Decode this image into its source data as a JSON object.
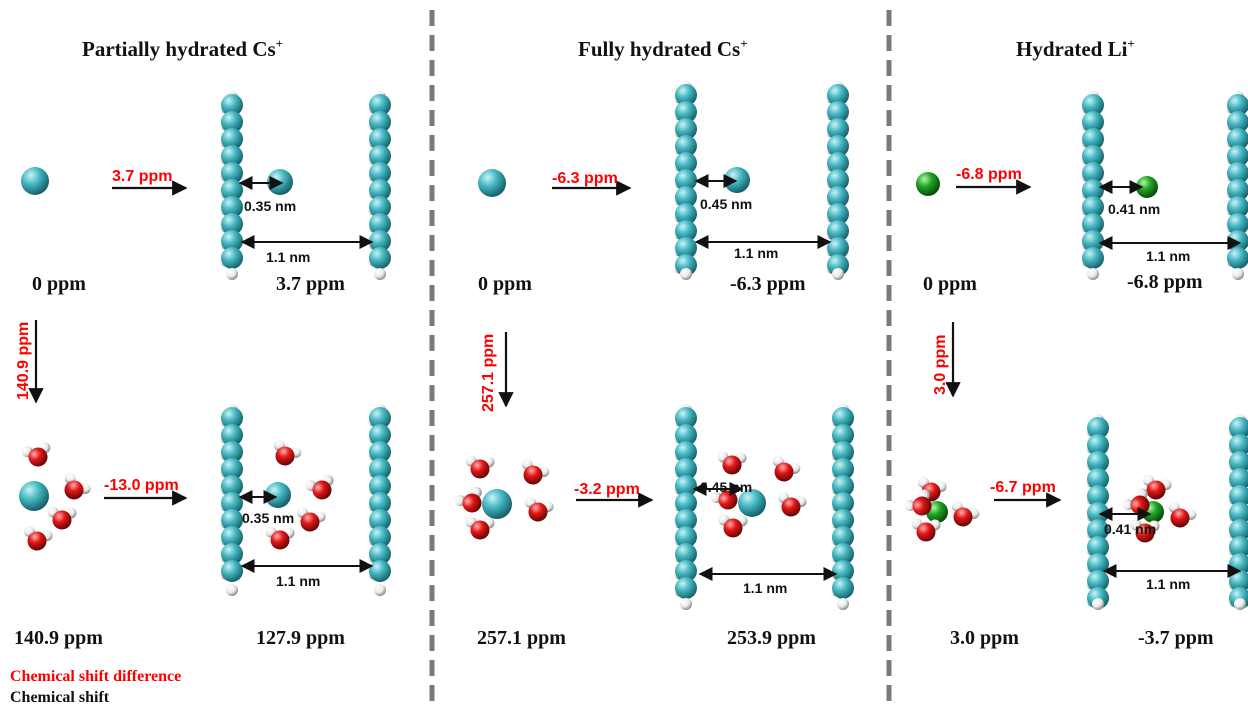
{
  "panels": [
    {
      "title": "Partially hydrated Cs",
      "title_sup": "+",
      "top": {
        "transfer_diff": "3.7 ppm",
        "distance_ion": "0.35 nm",
        "distance_gap": "1.1 nm",
        "shift_left": "0 ppm",
        "shift_right": "3.7 ppm"
      },
      "vertical_diff": "140.9 ppm",
      "bottom": {
        "transfer_diff": "-13.0 ppm",
        "distance_ion": "0.35 nm",
        "distance_gap": "1.1 nm",
        "shift_left": "140.9 ppm",
        "shift_right": "127.9 ppm"
      },
      "ion": "Cs"
    },
    {
      "title": "Fully hydrated Cs",
      "title_sup": "+",
      "top": {
        "transfer_diff": "-6.3 ppm",
        "distance_ion": "0.45 nm",
        "distance_gap": "1.1 nm",
        "shift_left": "0 ppm",
        "shift_right": "-6.3 ppm"
      },
      "vertical_diff": "257.1 ppm",
      "bottom": {
        "transfer_diff": "-3.2 ppm",
        "distance_ion": "0.45 nm",
        "distance_gap": "1.1 nm",
        "shift_left": "257.1 ppm",
        "shift_right": "253.9 ppm"
      },
      "ion": "Cs"
    },
    {
      "title": "Hydrated Li",
      "title_sup": "+",
      "top": {
        "transfer_diff": "-6.8 ppm",
        "distance_ion": "0.41 nm",
        "distance_gap": "1.1 nm",
        "shift_left": "0 ppm",
        "shift_right": "-6.8 ppm"
      },
      "vertical_diff": "3.0 ppm",
      "bottom": {
        "transfer_diff": "-6.7 ppm",
        "distance_ion": "0.41 nm",
        "distance_gap": "1.1 nm",
        "shift_left": "3.0 ppm",
        "shift_right": "-3.7 ppm"
      },
      "ion": "Li"
    }
  ],
  "legend": {
    "diff_label": "Chemical shift difference",
    "shift_label": "Chemical shift"
  },
  "colors": {
    "cs_ion": "#3fb3bd",
    "li_ion": "#19a21f",
    "carbon": "#3fb3bd",
    "hydrogen": "#ffffff",
    "oxygen": "#e31616",
    "diff_text": "#ff0000",
    "divider": "#7a7a7a"
  }
}
